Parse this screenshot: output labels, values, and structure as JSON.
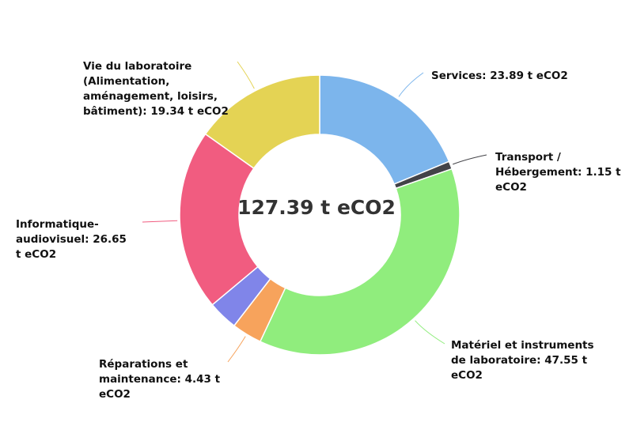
{
  "chart_data": {
    "type": "pie",
    "style": "donut",
    "total_label": "127.39 t eCO2",
    "unit": "t eCO2",
    "slices": [
      {
        "label": "Services",
        "value": 23.89,
        "color": "#7cb5ec",
        "display": "Services: 23.89 t eCO2"
      },
      {
        "label": "Transport / Hébergement",
        "value": 1.15,
        "color": "#434348",
        "display": "Transport / Hébergement: 1.15 t eCO2"
      },
      {
        "label": "Matériel et instruments de laboratoire",
        "value": 47.55,
        "color": "#90ed7d",
        "display": "Matériel et instruments de laboratoire: 47.55 t eCO2"
      },
      {
        "label": "Réparations et maintenance",
        "value": 4.43,
        "color": "#f7a35c",
        "display": "Réparations et maintenance: 4.43 t eCO2"
      },
      {
        "label": "",
        "value": 4.38,
        "color": "#8085e9",
        "display": ""
      },
      {
        "label": "Informatique-audiovisuel",
        "value": 26.65,
        "color": "#f15c80",
        "display": "Informatique-audiovisuel: 26.65 t eCO2"
      },
      {
        "label": "Vie du laboratoire (Alimentation, aménagement, loisirs, bâtiment)",
        "value": 19.34,
        "color": "#e4d354",
        "display": "Vie du laboratoire (Alimentation, aménagement, loisirs, bâtiment): 19.34 t eCO2"
      }
    ]
  }
}
